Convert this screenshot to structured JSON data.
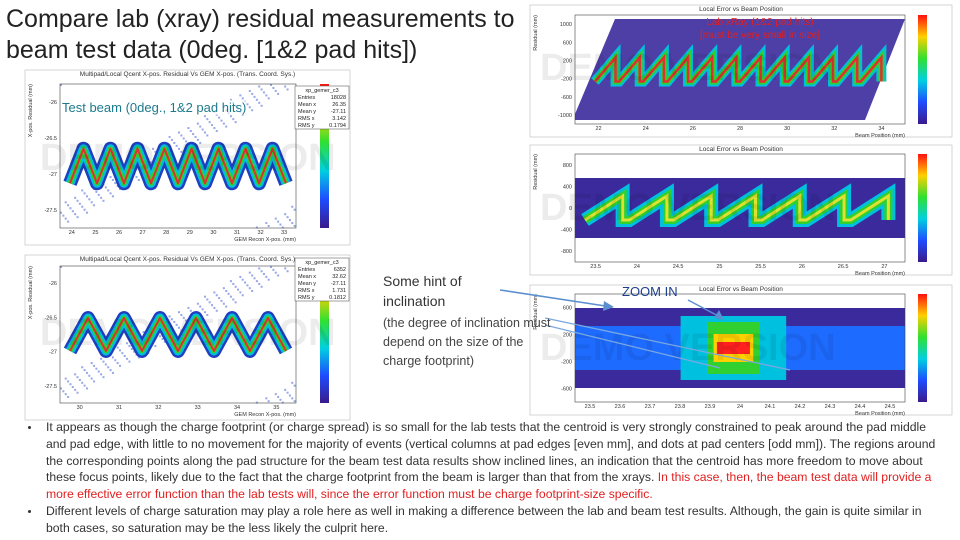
{
  "title": "Compare lab (xray) residual measurements to beam test data (0deg. [1&2 pad hits])",
  "watermark": "DEMO VERSION",
  "plots": {
    "beam_1": {
      "title": "Multipad/Local Qcent X-pos. Residual Vs GEM X-pos. (Trans. Coord. Sys.)",
      "x_label": "GEM Recon X-pos. (mm)",
      "y_label": "X-pos. Residual (mm)",
      "x_ticks": [
        "24",
        "25",
        "26",
        "27",
        "28",
        "29",
        "30",
        "31",
        "32",
        "33"
      ],
      "y_ticks": [
        "-26",
        "-26.5",
        "-27",
        "-27.5"
      ],
      "stats": {
        "name": "xp_gemer_c3",
        "rows": [
          [
            "Entries",
            "18028"
          ],
          [
            "Mean x",
            "26.35"
          ],
          [
            "Mean y",
            "-27.11"
          ],
          [
            "RMS x",
            "3.142"
          ],
          [
            "RMS y",
            "0.1794"
          ]
        ]
      }
    },
    "beam_2": {
      "title": "Multipad/Local Qcent X-pos. Residual Vs GEM X-pos. (Trans. Coord. Sys.)",
      "x_label": "GEM Recon X-pos. (mm)",
      "y_label": "X-pos. Residual (mm)",
      "x_ticks": [
        "30",
        "31",
        "32",
        "33",
        "34",
        "35"
      ],
      "y_ticks": [
        "-26",
        "-26.5",
        "-27",
        "-27.5"
      ],
      "stats": {
        "name": "xp_gemer_c3",
        "rows": [
          [
            "Entries",
            "6352"
          ],
          [
            "Mean x",
            "32.62"
          ],
          [
            "Mean y",
            "-27.11"
          ],
          [
            "RMS x",
            "1.731"
          ],
          [
            "RMS y",
            "0.1812"
          ]
        ]
      }
    },
    "lab_1": {
      "title": "Local Error vs Beam Position",
      "x_label": "Beam Position (mm)",
      "y_label": "Residual (mm)",
      "x_ticks": [
        "22",
        "24",
        "26",
        "28",
        "30",
        "32",
        "34"
      ],
      "y_ticks": [
        "1000",
        "600",
        "200",
        "-200",
        "-600",
        "-1000"
      ]
    },
    "lab_2": {
      "title": "Local Error vs Beam Position",
      "x_label": "Beam Position (mm)",
      "y_label": "Residual (mm)",
      "x_ticks": [
        "23.5",
        "24",
        "24.5",
        "25",
        "25.5",
        "26",
        "26.5",
        "27"
      ],
      "y_ticks": [
        "800",
        "400",
        "0",
        "-400",
        "-800"
      ]
    },
    "lab_3": {
      "title": "Local Error vs Beam Position",
      "x_label": "Beam Position (mm)",
      "y_label": "Residual (mm)",
      "x_ticks": [
        "23.5",
        "23.6",
        "23.7",
        "23.8",
        "23.9",
        "24",
        "24.1",
        "24.2",
        "24.3",
        "24.4",
        "24.5"
      ],
      "y_ticks": [
        "600",
        "200",
        "-200",
        "-600"
      ]
    }
  },
  "annotations": {
    "beam_label": "Test beam (0deg., 1&2 pad hits)",
    "lab_label": [
      "Lab xRay (1&2 pad hits)",
      "[must be very small in size]"
    ],
    "hint": "Some hint of inclination",
    "hint_note": "(the degree of inclination must depend on the size of the charge footprint)",
    "zoom": "ZOOM IN"
  },
  "bullets": [
    {
      "text": "It appears as though the charge footprint (or charge spread) is so small for the lab tests that the centroid is very strongly constrained to peak around the pad middle and pad edge, with little to no movement for the majority of events (vertical columns at pad edges [even mm], and dots at pad centers [odd mm]). The regions around the corresponding points along the pad structure for the beam test data results show inclined lines, an indication that the centroid has more freedom to move about these focus points, likely due to the fact that the charge footprint from the beam is larger than that from the xrays.",
      "highlight": "In this case, then, the beam test data will provide a more effective error function than the lab tests will, since the error function must be charge footprint-size specific."
    },
    {
      "text": "Different levels of charge saturation may play a role here as well in making a difference between the lab and beam test results.  Although, the gain is quite similar in both cases, so saturation may be the less likely the culprit here."
    }
  ]
}
